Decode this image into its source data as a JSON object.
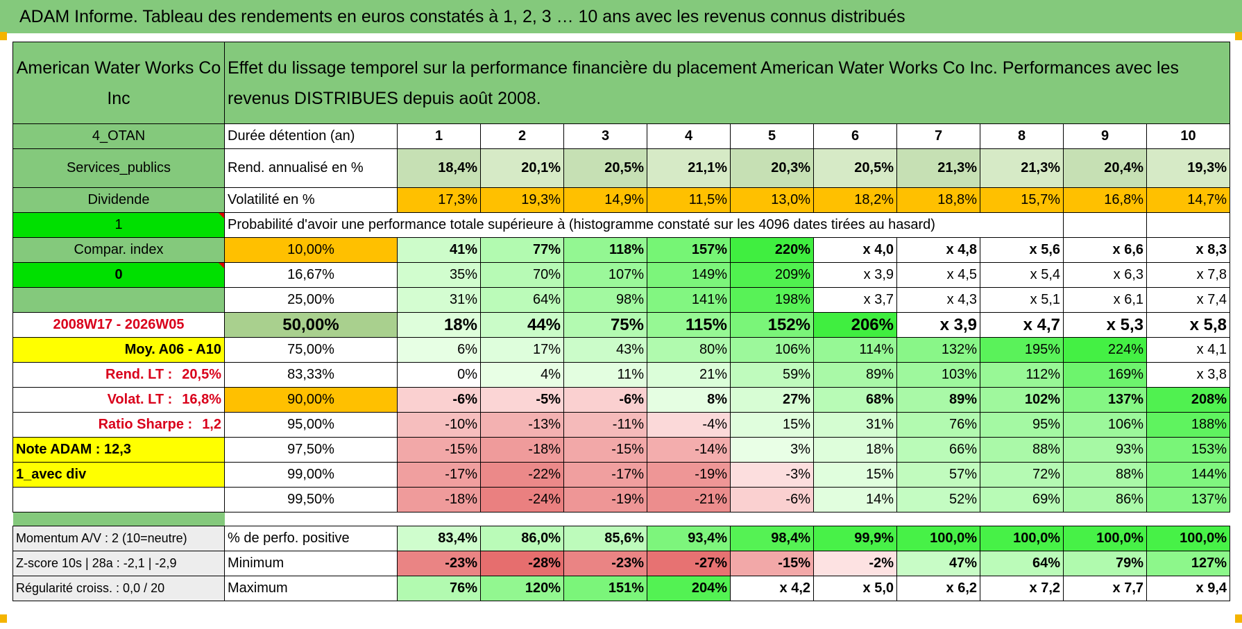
{
  "title": "ADAM Informe. Tableau des rendements en euros constatés à 1, 2, 3 … 10 ans avec les revenus connus distribués",
  "colors": {
    "header_green": "#84c97c",
    "bright_green": "#00e000",
    "orange": "#ffc000",
    "yellow": "#ffff00",
    "label_red": "#d9001b"
  },
  "left": {
    "company": "American Water Works Co Inc",
    "otan": "4_OTAN",
    "sector": "Services_publics",
    "dividende": "Dividende",
    "one": "1",
    "compar": "Compar. index",
    "zero": "0",
    "period": "2008W17 - 2026W05",
    "moy": "Moy. A06 - A10",
    "rend_lt_label": "Rend. LT :",
    "rend_lt_value": "20,5%",
    "volat_lt_label": "Volat. LT :",
    "volat_lt_value": "16,8%",
    "sharpe_label": "Ratio Sharpe :",
    "sharpe_value": "1,2",
    "note": "Note ADAM : 12,3",
    "avec_div": "1_avec div",
    "momentum": "Momentum A/V : 2 (10=neutre)",
    "zscore": "Z-score 10s | 28a : -2,1 | -2,9",
    "regularite": "Régularité croiss. : 0,0 / 20"
  },
  "header_text": "Effet du lissage temporel sur la performance financière du placement American Water Works Co Inc. Performances avec les revenus DISTRIBUES depuis août 2008.",
  "duree_label": "Durée détention (an)",
  "years": [
    "1",
    "2",
    "3",
    "4",
    "5",
    "6",
    "7",
    "8",
    "9",
    "10"
  ],
  "rend_label": "Rend. annualisé en %",
  "rend": [
    "18,4%",
    "20,1%",
    "20,5%",
    "21,1%",
    "20,3%",
    "20,5%",
    "21,3%",
    "21,3%",
    "20,4%",
    "19,3%"
  ],
  "vol_label": "Volatilité en %",
  "vol": [
    "17,3%",
    "19,3%",
    "14,9%",
    "11,5%",
    "13,0%",
    "18,2%",
    "18,8%",
    "15,7%",
    "16,8%",
    "14,7%"
  ],
  "prob_label": "Probabilité d'avoir une performance totale supérieure à (histogramme constaté sur les 4096 dates tirées au hasard)",
  "prob_rows": [
    {
      "pct": "10,00%",
      "vals": [
        "41%",
        "77%",
        "118%",
        "157%",
        "220%",
        "x 4,0",
        "x 4,8",
        "x 5,6",
        "x 6,6",
        "x 8,3"
      ]
    },
    {
      "pct": "16,67%",
      "vals": [
        "35%",
        "70%",
        "107%",
        "149%",
        "209%",
        "x 3,9",
        "x 4,5",
        "x 5,4",
        "x 6,3",
        "x 7,8"
      ]
    },
    {
      "pct": "25,00%",
      "vals": [
        "31%",
        "64%",
        "98%",
        "141%",
        "198%",
        "x 3,7",
        "x 4,3",
        "x 5,1",
        "x 6,1",
        "x 7,4"
      ]
    },
    {
      "pct": "50,00%",
      "vals": [
        "18%",
        "44%",
        "75%",
        "115%",
        "152%",
        "206%",
        "x 3,9",
        "x 4,7",
        "x 5,3",
        "x 5,8"
      ]
    },
    {
      "pct": "75,00%",
      "vals": [
        "6%",
        "17%",
        "43%",
        "80%",
        "106%",
        "114%",
        "132%",
        "195%",
        "224%",
        "x 4,1"
      ]
    },
    {
      "pct": "83,33%",
      "vals": [
        "0%",
        "4%",
        "11%",
        "21%",
        "59%",
        "89%",
        "103%",
        "112%",
        "169%",
        "x 3,8"
      ]
    },
    {
      "pct": "90,00%",
      "vals": [
        "-6%",
        "-5%",
        "-6%",
        "8%",
        "27%",
        "68%",
        "89%",
        "102%",
        "137%",
        "208%"
      ]
    },
    {
      "pct": "95,00%",
      "vals": [
        "-10%",
        "-13%",
        "-11%",
        "-4%",
        "15%",
        "31%",
        "76%",
        "95%",
        "106%",
        "188%"
      ]
    },
    {
      "pct": "97,50%",
      "vals": [
        "-15%",
        "-18%",
        "-15%",
        "-14%",
        "3%",
        "18%",
        "66%",
        "88%",
        "93%",
        "153%"
      ]
    },
    {
      "pct": "99,00%",
      "vals": [
        "-17%",
        "-22%",
        "-17%",
        "-19%",
        "-3%",
        "15%",
        "57%",
        "72%",
        "88%",
        "144%"
      ]
    },
    {
      "pct": "99,50%",
      "vals": [
        "-18%",
        "-24%",
        "-19%",
        "-21%",
        "-6%",
        "14%",
        "52%",
        "69%",
        "86%",
        "137%"
      ]
    }
  ],
  "stats": [
    {
      "label": "% de perfo. positive",
      "vals": [
        "83,4%",
        "86,0%",
        "85,6%",
        "93,4%",
        "98,4%",
        "99,9%",
        "100,0%",
        "100,0%",
        "100,0%",
        "100,0%"
      ]
    },
    {
      "label": "Minimum",
      "vals": [
        "-23%",
        "-28%",
        "-23%",
        "-27%",
        "-15%",
        "-2%",
        "47%",
        "64%",
        "79%",
        "127%"
      ]
    },
    {
      "label": "Maximum",
      "vals": [
        "76%",
        "120%",
        "151%",
        "204%",
        "x 4,2",
        "x 5,0",
        "x 6,2",
        "x 7,2",
        "x 7,7",
        "x 9,4"
      ]
    }
  ]
}
